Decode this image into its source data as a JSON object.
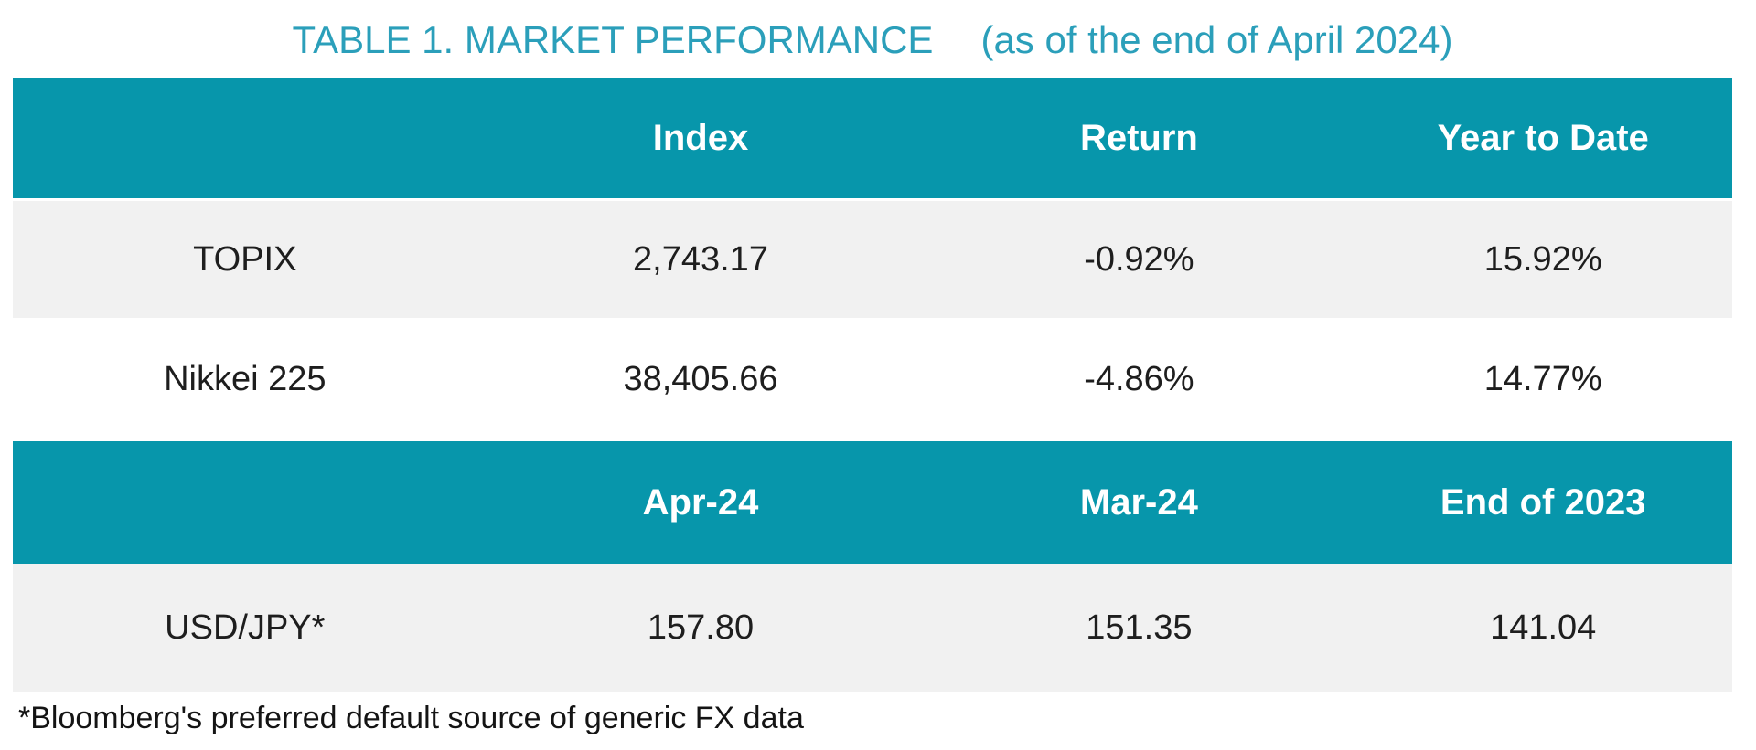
{
  "title": {
    "main": "TABLE 1. MARKET PERFORMANCE",
    "qualifier": "(as of the end of April 2024)"
  },
  "colors": {
    "header_teal": "#0796AB",
    "title_teal": "#2B9FBA",
    "row_alt_grey": "#F1F1F1",
    "body_text": "#1E1E1E"
  },
  "table": {
    "header_row_1": {
      "cells": [
        "",
        "Index",
        "Return",
        "Year to Date"
      ]
    },
    "rows_1": [
      {
        "cells": [
          "TOPIX",
          "2,743.17",
          "-0.92%",
          "15.92%"
        ]
      },
      {
        "cells": [
          "Nikkei 225",
          "38,405.66",
          "-4.86%",
          "14.77%"
        ]
      }
    ],
    "header_row_2": {
      "cells": [
        "",
        "Apr-24",
        "Mar-24",
        "End of 2023"
      ]
    },
    "rows_2": [
      {
        "cells": [
          "USD/JPY*",
          "157.80",
          "151.35",
          "141.04"
        ]
      }
    ]
  },
  "footnote": "*Bloomberg's preferred default source of generic FX data",
  "chart_data": {
    "type": "table",
    "title": "TABLE 1. MARKET PERFORMANCE (as of the end of April 2024)",
    "sections": [
      {
        "columns": [
          "",
          "Index",
          "Return",
          "Year to Date"
        ],
        "rows": [
          [
            "TOPIX",
            "2,743.17",
            "-0.92%",
            "15.92%"
          ],
          [
            "Nikkei 225",
            "38,405.66",
            "-4.86%",
            "14.77%"
          ]
        ]
      },
      {
        "columns": [
          "",
          "Apr-24",
          "Mar-24",
          "End of 2023"
        ],
        "rows": [
          [
            "USD/JPY*",
            "157.80",
            "151.35",
            "141.04"
          ]
        ]
      }
    ],
    "footnote": "*Bloomberg's preferred default source of generic FX data",
    "layout_hints": {
      "header_background": "#0796AB",
      "alt_row_background": "#F1F1F1",
      "column_alignment": "center",
      "column_widths_pct": [
        27,
        26,
        25,
        22
      ]
    }
  }
}
